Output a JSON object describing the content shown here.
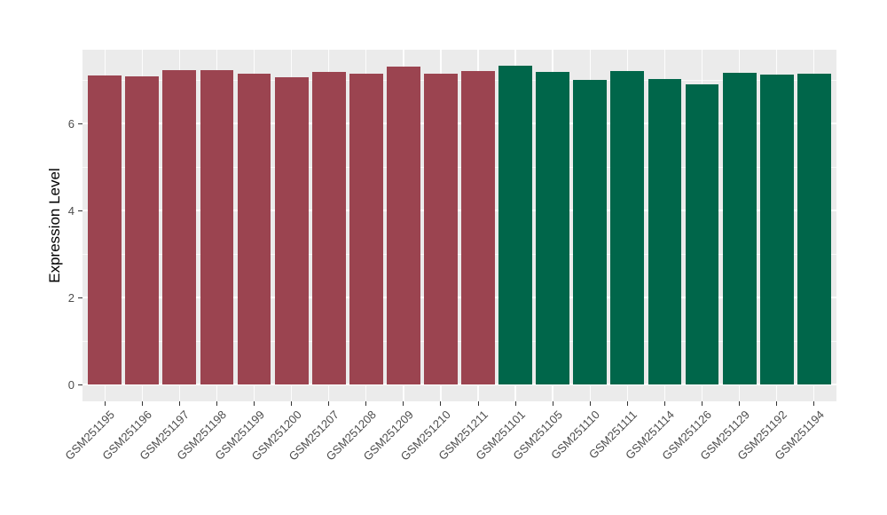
{
  "chart_data": {
    "type": "bar",
    "title": "",
    "xlabel": "",
    "ylabel": "Expression Level",
    "categories": [
      "GSM251195",
      "GSM251196",
      "GSM251197",
      "GSM251198",
      "GSM251199",
      "GSM251200",
      "GSM251207",
      "GSM251208",
      "GSM251209",
      "GSM251210",
      "GSM251211",
      "GSM251101",
      "GSM251105",
      "GSM251110",
      "GSM251111",
      "GSM251114",
      "GSM251126",
      "GSM251129",
      "GSM251192",
      "GSM251194"
    ],
    "values": [
      7.1,
      7.08,
      7.23,
      7.22,
      7.14,
      7.07,
      7.18,
      7.15,
      7.3,
      7.15,
      7.2,
      7.32,
      7.19,
      7.01,
      7.2,
      7.02,
      6.9,
      7.16,
      7.12,
      7.14
    ],
    "bar_group": [
      "maroon",
      "maroon",
      "maroon",
      "maroon",
      "maroon",
      "maroon",
      "maroon",
      "maroon",
      "maroon",
      "maroon",
      "maroon",
      "green",
      "green",
      "green",
      "green",
      "green",
      "green",
      "green",
      "green",
      "green"
    ],
    "group_colors": {
      "maroon": "#9B4450",
      "green": "#00664A"
    },
    "yticks": [
      0,
      2,
      4,
      6
    ],
    "yticks_minor": [
      1,
      3,
      5,
      7
    ],
    "ylim": [
      -0.39,
      7.69
    ],
    "bar_width_fraction": 0.9,
    "grid": true,
    "legend": "none",
    "panel_background": "#EBEBEB",
    "gridline_color": "#FFFFFF",
    "axis_text_color": "#4D4D4D",
    "axis_title_color": "#000000",
    "tick_color": "#333333"
  }
}
